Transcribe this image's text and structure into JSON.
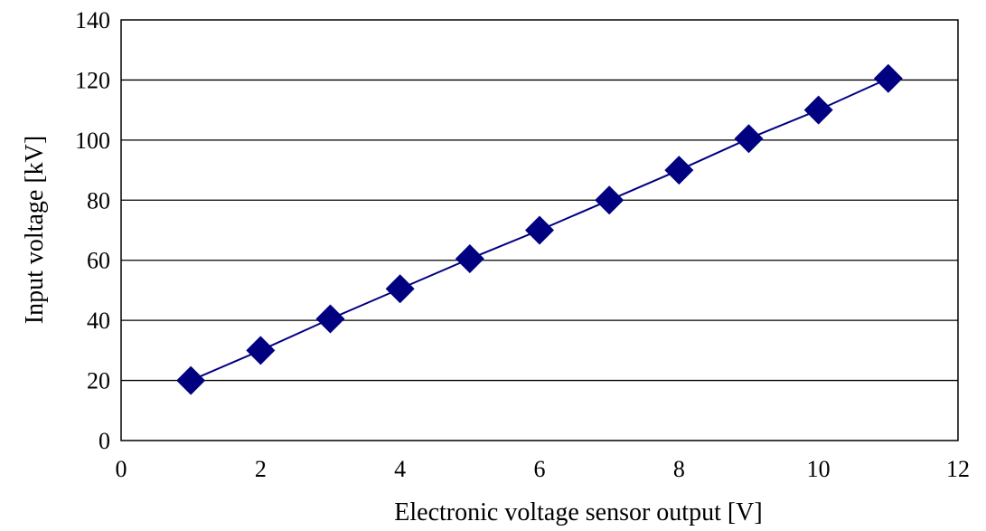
{
  "chart_data": {
    "type": "line",
    "title": "",
    "xlabel": "Electronic voltage sensor output [V]",
    "ylabel": "Input voltage [kV]",
    "xlim": [
      0,
      12
    ],
    "ylim": [
      0,
      140
    ],
    "xticks": [
      0,
      2,
      4,
      6,
      8,
      10,
      12
    ],
    "yticks": [
      0,
      20,
      40,
      60,
      80,
      100,
      120,
      140
    ],
    "grid": "horizontal",
    "legend": "none",
    "series": [
      {
        "name": "Input voltage",
        "color": "#000080",
        "marker": "diamond",
        "x": [
          1,
          2,
          3,
          4,
          5,
          6,
          7,
          8,
          9,
          10,
          11
        ],
        "y": [
          20,
          30,
          40.5,
          50.5,
          60.5,
          70,
          80,
          90,
          100.5,
          110,
          120.5
        ]
      }
    ]
  }
}
